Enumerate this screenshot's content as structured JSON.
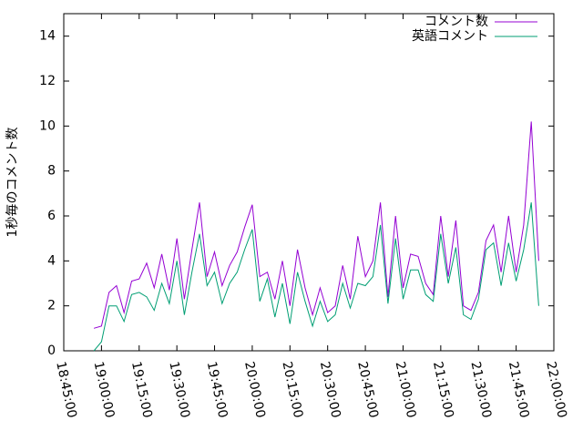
{
  "chart_data": {
    "type": "line",
    "y_label": "1秒毎のコメント数",
    "x": [
      68220,
      68400,
      68580,
      68760,
      68940,
      69120,
      69300,
      69480,
      69660,
      69840,
      70020,
      70200,
      70380,
      70560,
      70740,
      70920,
      71100,
      71280,
      71460,
      71640,
      71820,
      72000,
      72180,
      72360,
      72540,
      72720,
      72900,
      73080,
      73260,
      73440,
      73620,
      73800,
      73980,
      74160,
      74340,
      74520,
      74700,
      74880,
      75060,
      75240,
      75420,
      75600,
      75780,
      75960,
      76140,
      76320,
      76500,
      76680,
      76860,
      77040,
      77220,
      77400,
      77580,
      77760,
      77940,
      78120,
      78300,
      78480,
      78660,
      78840
    ],
    "series": [
      {
        "name": "コメント数",
        "color": "#9400d3",
        "values": [
          1.0,
          1.1,
          2.6,
          2.9,
          1.7,
          3.1,
          3.2,
          3.9,
          2.8,
          4.3,
          2.7,
          5.0,
          2.3,
          4.5,
          6.6,
          3.3,
          4.4,
          2.9,
          3.8,
          4.4,
          5.5,
          6.5,
          3.3,
          3.5,
          2.3,
          4.0,
          2.0,
          4.5,
          2.8,
          1.6,
          2.8,
          1.7,
          2.0,
          3.8,
          2.3,
          5.1,
          3.3,
          4.0,
          6.6,
          2.4,
          6.0,
          2.8,
          4.3,
          4.2,
          3.0,
          2.5,
          6.0,
          3.3,
          5.8,
          2.0,
          1.8,
          2.6,
          4.9,
          5.6,
          3.5,
          6.0,
          3.5,
          5.6,
          10.2,
          4.0
        ]
      },
      {
        "name": "英語コメント",
        "color": "#009e73",
        "values": [
          0.0,
          0.4,
          2.0,
          2.0,
          1.3,
          2.5,
          2.6,
          2.4,
          1.8,
          3.0,
          2.1,
          4.0,
          1.6,
          3.5,
          5.2,
          2.9,
          3.5,
          2.1,
          3.0,
          3.5,
          4.5,
          5.4,
          2.2,
          3.2,
          1.5,
          3.0,
          1.2,
          3.5,
          2.2,
          1.1,
          2.2,
          1.3,
          1.6,
          3.0,
          1.9,
          3.0,
          2.9,
          3.3,
          5.6,
          2.1,
          5.0,
          2.3,
          3.6,
          3.6,
          2.5,
          2.2,
          5.2,
          3.0,
          4.6,
          1.6,
          1.4,
          2.3,
          4.5,
          4.8,
          2.9,
          4.8,
          3.1,
          4.5,
          6.6,
          2.0
        ]
      }
    ],
    "xlim": [
      67500,
      79200
    ],
    "xticks": [
      {
        "value": 67500,
        "label": "18:45:00"
      },
      {
        "value": 68400,
        "label": "19:00:00"
      },
      {
        "value": 69300,
        "label": "19:15:00"
      },
      {
        "value": 70200,
        "label": "19:30:00"
      },
      {
        "value": 71100,
        "label": "19:45:00"
      },
      {
        "value": 72000,
        "label": "20:00:00"
      },
      {
        "value": 72900,
        "label": "20:15:00"
      },
      {
        "value": 73800,
        "label": "20:30:00"
      },
      {
        "value": 74700,
        "label": "20:45:00"
      },
      {
        "value": 75600,
        "label": "21:00:00"
      },
      {
        "value": 76500,
        "label": "21:15:00"
      },
      {
        "value": 77400,
        "label": "21:30:00"
      },
      {
        "value": 78300,
        "label": "21:45:00"
      },
      {
        "value": 79200,
        "label": "22:00:00"
      }
    ],
    "ylim": [
      0,
      15
    ],
    "yticks": [
      0,
      2,
      4,
      6,
      8,
      10,
      12,
      14
    ],
    "legend": "top-right"
  }
}
